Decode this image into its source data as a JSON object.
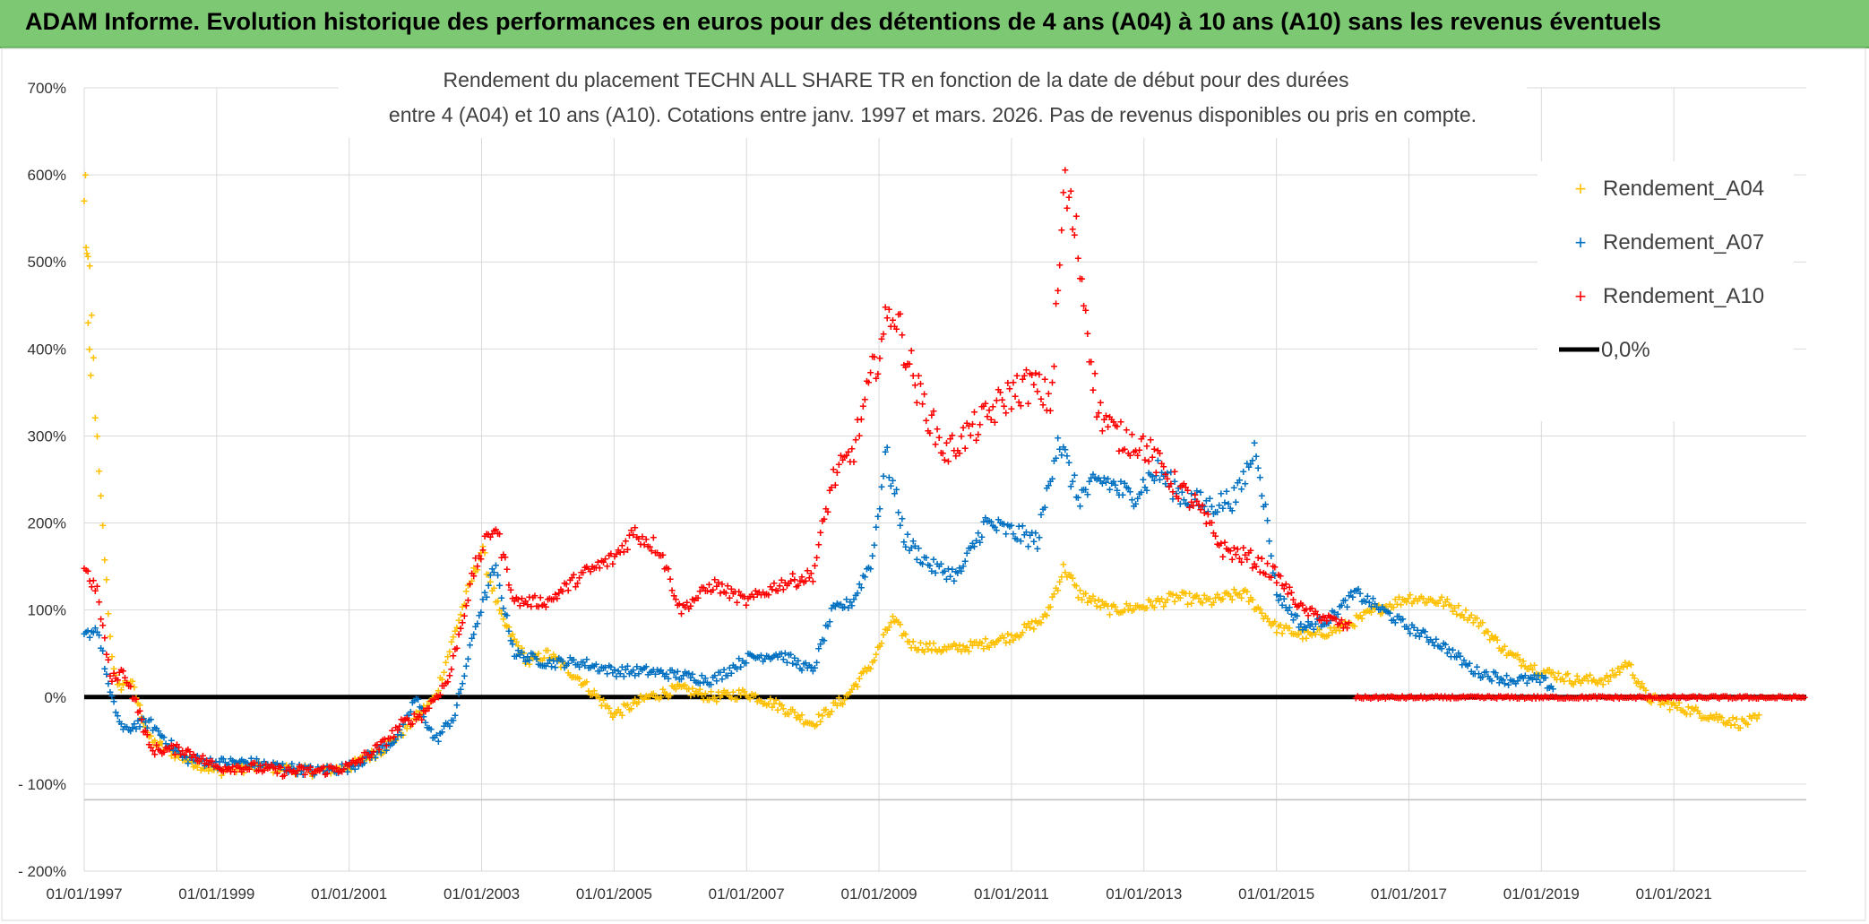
{
  "header": {
    "title": "ADAM Informe. Evolution historique des performances en euros pour des détentions de 4 ans (A04) à 10 ans (A10) sans les revenus éventuels"
  },
  "chart_data": {
    "type": "scatter",
    "title_line1": "Rendement du placement TECHN ALL SHARE TR en fonction de la date de début pour des durées",
    "title_line2": "entre 4 (A04) et 10 ans (A10). Cotations entre janv. 1997 et mars. 2026. Pas de revenus disponibles ou pris en compte.",
    "xlabel": "",
    "ylabel": "",
    "xlim": [
      1997.0,
      2023.0
    ],
    "ylim": [
      -200,
      700
    ],
    "y_ticks": [
      -200,
      -100,
      0,
      100,
      200,
      300,
      400,
      500,
      600,
      700
    ],
    "y_tick_labels": [
      "- 200%",
      "- 100%",
      "0%",
      "100%",
      "200%",
      "300%",
      "400%",
      "500%",
      "600%",
      "700%"
    ],
    "x_ticks": [
      1997,
      1999,
      2001,
      2003,
      2005,
      2007,
      2009,
      2011,
      2013,
      2015,
      2017,
      2019,
      2021
    ],
    "x_tick_labels": [
      "01/01/1997",
      "01/01/1999",
      "01/01/2001",
      "01/01/2003",
      "01/01/2005",
      "01/01/2007",
      "01/01/2009",
      "01/01/2011",
      "01/01/2013",
      "01/01/2015",
      "01/01/2017",
      "01/01/2019",
      "01/01/2021"
    ],
    "grid": true,
    "legend_position": "top-right",
    "colors": {
      "A04": "#ffc000",
      "A07": "#0070c0",
      "A10": "#ff0000",
      "zero": "#000000",
      "grid": "#d9d9d9",
      "header": "#7dc873"
    },
    "series": [
      {
        "name": "Rendement_A04",
        "key": "A04",
        "x": [
          1997.0,
          1997.1,
          1997.2,
          1997.3,
          1997.4,
          1997.5,
          1997.7,
          1998.0,
          1998.5,
          1999.0,
          1999.5,
          2000.0,
          2000.5,
          2001.0,
          2001.5,
          2001.8,
          2002.3,
          2002.7,
          2003.0,
          2003.3,
          2003.7,
          2004.0,
          2004.5,
          2005.0,
          2005.5,
          2006.0,
          2006.5,
          2007.0,
          2007.5,
          2008.0,
          2008.5,
          2008.9,
          2009.2,
          2009.5,
          2010.0,
          2010.5,
          2011.0,
          2011.5,
          2011.8,
          2012.0,
          2012.5,
          2013.0,
          2013.5,
          2014.0,
          2014.5,
          2015.0,
          2015.5,
          2016.0,
          2016.5,
          2017.0,
          2017.5,
          2018.0,
          2018.5,
          2019.0,
          2019.5,
          2020.0,
          2020.3,
          2020.6,
          2021.0,
          2021.5,
          2022.0,
          2022.3
        ],
        "y": [
          560,
          450,
          280,
          170,
          60,
          10,
          20,
          -50,
          -70,
          -85,
          -80,
          -82,
          -85,
          -80,
          -60,
          -40,
          0,
          100,
          170,
          90,
          40,
          50,
          20,
          -20,
          0,
          10,
          0,
          5,
          -10,
          -30,
          0,
          40,
          90,
          60,
          55,
          60,
          70,
          90,
          150,
          120,
          100,
          105,
          115,
          110,
          120,
          80,
          70,
          80,
          100,
          115,
          110,
          90,
          50,
          30,
          20,
          20,
          40,
          0,
          -10,
          -20,
          -30,
          -25
        ]
      },
      {
        "name": "Rendement_A07",
        "key": "A07",
        "x": [
          1997.0,
          1997.2,
          1997.4,
          1997.6,
          1997.8,
          1998.0,
          1998.5,
          1999.0,
          1999.5,
          2000.0,
          2000.5,
          2001.0,
          2001.5,
          2001.8,
          2002.0,
          2002.3,
          2002.6,
          2002.9,
          2003.2,
          2003.5,
          2004.0,
          2004.5,
          2005.0,
          2005.5,
          2006.0,
          2006.5,
          2007.0,
          2007.5,
          2008.0,
          2008.3,
          2008.6,
          2008.9,
          2009.1,
          2009.4,
          2009.8,
          2010.2,
          2010.6,
          2011.0,
          2011.4,
          2011.7,
          2012.0,
          2012.4,
          2012.8,
          2013.2,
          2013.6,
          2014.0,
          2014.4,
          2014.7,
          2015.0,
          2015.4,
          2015.8,
          2016.2,
          2016.6,
          2017.0,
          2017.5,
          2018.0,
          2018.5,
          2019.0,
          2019.2
        ],
        "y": [
          70,
          80,
          0,
          -40,
          -30,
          -30,
          -70,
          -75,
          -75,
          -80,
          -85,
          -80,
          -60,
          -40,
          0,
          -50,
          -20,
          80,
          150,
          50,
          40,
          40,
          30,
          30,
          25,
          20,
          45,
          50,
          30,
          100,
          110,
          160,
          280,
          180,
          150,
          140,
          200,
          190,
          180,
          300,
          230,
          250,
          230,
          260,
          230,
          220,
          230,
          290,
          120,
          80,
          90,
          120,
          100,
          80,
          60,
          30,
          20,
          20,
          10
        ]
      },
      {
        "name": "Rendement_A10",
        "key": "A10",
        "x": [
          1997.0,
          1997.2,
          1997.4,
          1997.6,
          1997.8,
          1998.0,
          1998.5,
          1999.0,
          1999.5,
          2000.0,
          2000.5,
          2001.0,
          2001.5,
          2001.8,
          2002.1,
          2002.5,
          2002.9,
          2003.2,
          2003.5,
          2004.0,
          2004.5,
          2005.0,
          2005.3,
          2005.7,
          2006.0,
          2006.5,
          2007.0,
          2007.5,
          2008.0,
          2008.3,
          2008.6,
          2009.0,
          2009.2,
          2009.6,
          2010.0,
          2010.3,
          2010.6,
          2011.0,
          2011.3,
          2011.6,
          2011.8,
          2012.0,
          2012.3,
          2012.6,
          2013.0,
          2013.4,
          2013.8,
          2014.2,
          2014.6,
          2015.0,
          2015.4,
          2015.8,
          2016.1
        ],
        "y": [
          150,
          120,
          20,
          30,
          -10,
          -60,
          -60,
          -80,
          -80,
          -85,
          -85,
          -80,
          -55,
          -30,
          -20,
          20,
          150,
          200,
          110,
          110,
          140,
          160,
          190,
          170,
          100,
          130,
          110,
          130,
          140,
          250,
          280,
          400,
          450,
          350,
          280,
          300,
          320,
          350,
          360,
          340,
          590,
          520,
          330,
          300,
          290,
          250,
          220,
          170,
          160,
          140,
          100,
          90,
          80
        ]
      }
    ],
    "zero_line": {
      "label": "0,0%",
      "value": 0,
      "x_start": 1997.0,
      "x_end": 2023.0
    },
    "a10_flat_segment": {
      "x_start": 2016.2,
      "x_end": 2023.0,
      "value": 0
    },
    "a04_early_spike": {
      "x": 1997.02,
      "values": [
        600,
        510,
        430,
        400,
        370
      ]
    }
  }
}
